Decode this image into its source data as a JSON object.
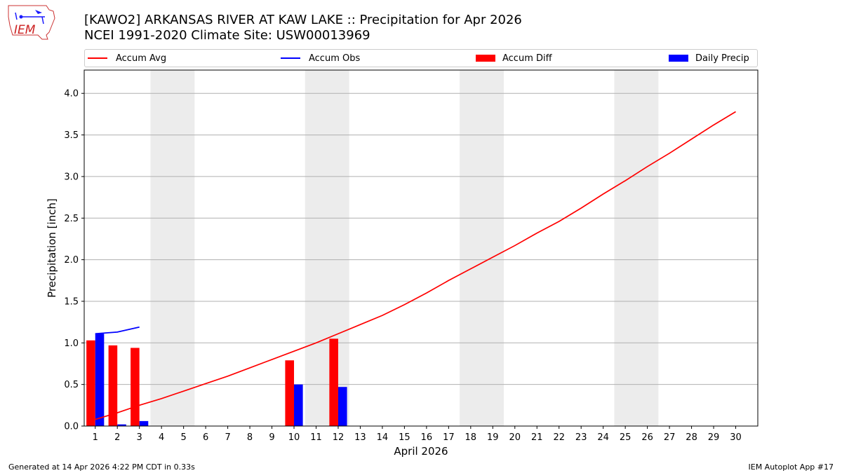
{
  "logo": {
    "text": "IEM"
  },
  "header": {
    "title_line1": "[KAWO2] ARKANSAS RIVER  AT KAW LAKE :: Precipitation for Apr 2026",
    "title_line2": "NCEI 1991-2020 Climate Site: USW00013969"
  },
  "legend": {
    "items": [
      {
        "label": "Accum Avg",
        "color": "#ff0000",
        "kind": "line"
      },
      {
        "label": "Accum Obs",
        "color": "#0000ff",
        "kind": "line"
      },
      {
        "label": "Accum Diff",
        "color": "#ff0000",
        "kind": "box"
      },
      {
        "label": "Daily Precip",
        "color": "#0000ff",
        "kind": "box"
      }
    ]
  },
  "footer": {
    "left": "Generated at 14 Apr 2026 4:22 PM CDT in 0.33s",
    "right": "IEM Autoplot App #17"
  },
  "chart_data": {
    "type": "bar",
    "xlabel": "April 2026",
    "ylabel": "Precipitation [inch]",
    "xlim": [
      0.5,
      31.0
    ],
    "ylim": [
      0.0,
      4.28
    ],
    "x_ticks": [
      1,
      2,
      3,
      4,
      5,
      6,
      7,
      8,
      9,
      10,
      11,
      12,
      13,
      14,
      15,
      16,
      17,
      18,
      19,
      20,
      21,
      22,
      23,
      24,
      25,
      26,
      27,
      28,
      29,
      30
    ],
    "y_ticks": [
      0.0,
      0.5,
      1.0,
      1.5,
      2.0,
      2.5,
      3.0,
      3.5,
      4.0
    ],
    "y_tick_labels": [
      "0.0",
      "0.5",
      "1.0",
      "1.5",
      "2.0",
      "2.5",
      "3.0",
      "3.5",
      "4.0"
    ],
    "grid": "horizontal",
    "shaded_weekend_days": [
      [
        4,
        5
      ],
      [
        11,
        12
      ],
      [
        18,
        19
      ],
      [
        25,
        26
      ]
    ],
    "series": [
      {
        "name": "Accum Avg",
        "kind": "line",
        "color": "#ff0000",
        "x": [
          1,
          2,
          3,
          4,
          5,
          6,
          7,
          8,
          9,
          10,
          11,
          12,
          13,
          14,
          15,
          16,
          17,
          18,
          19,
          20,
          21,
          22,
          23,
          24,
          25,
          26,
          27,
          28,
          29,
          30
        ],
        "values": [
          0.08,
          0.16,
          0.25,
          0.33,
          0.42,
          0.51,
          0.6,
          0.7,
          0.8,
          0.9,
          1.0,
          1.11,
          1.22,
          1.33,
          1.46,
          1.6,
          1.75,
          1.89,
          2.03,
          2.17,
          2.32,
          2.46,
          2.62,
          2.79,
          2.95,
          3.12,
          3.28,
          3.45,
          3.62,
          3.78
        ]
      },
      {
        "name": "Accum Obs",
        "kind": "line",
        "color": "#0000ff",
        "x": [
          1,
          2,
          3
        ],
        "values": [
          1.11,
          1.13,
          1.19
        ]
      },
      {
        "name": "Accum Diff",
        "kind": "bar",
        "color": "#ff0000",
        "x": [
          1,
          2,
          3,
          10,
          12
        ],
        "values": [
          1.03,
          0.97,
          0.94,
          0.79,
          1.05
        ]
      },
      {
        "name": "Daily Precip",
        "kind": "bar",
        "color": "#0000ff",
        "x": [
          1,
          2,
          3,
          10,
          12
        ],
        "values": [
          1.11,
          0.02,
          0.06,
          0.5,
          0.47
        ]
      }
    ]
  }
}
